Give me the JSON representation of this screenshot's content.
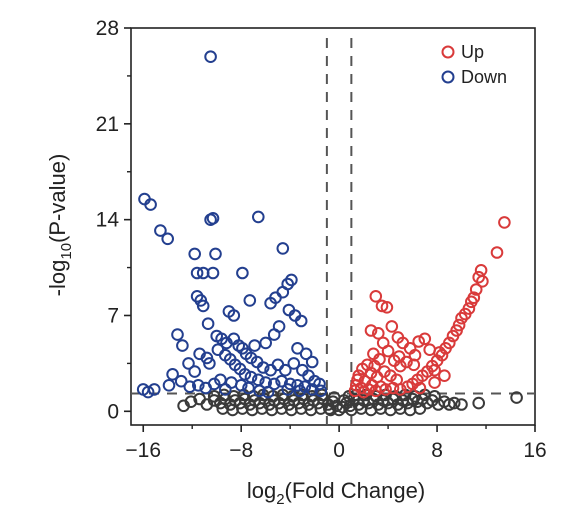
{
  "chart_data": {
    "type": "scatter",
    "title": "",
    "xlabel_main": "log",
    "xlabel_sub": "2",
    "xlabel_rest": "(Fold Change)",
    "ylabel_main": "-log",
    "ylabel_sub": "10",
    "ylabel_rest": "(P-value)",
    "xlim": [
      -17,
      16
    ],
    "ylim": [
      -1,
      28
    ],
    "xticks": [
      -16,
      -8,
      0,
      8,
      16
    ],
    "xtick_labels": [
      "−16",
      "−8",
      "0",
      "8",
      "16"
    ],
    "yticks": [
      0,
      7,
      14,
      21,
      28
    ],
    "ytick_labels": [
      "0",
      "7",
      "14",
      21,
      "28"
    ],
    "thresholds": {
      "fold_change_lines": [
        -1,
        1
      ],
      "pvalue_line": 1.3
    },
    "legend": {
      "placement": "top-right"
    },
    "series": [
      {
        "name": "Up",
        "color": "#d93a3a",
        "points": [
          [
            13.5,
            13.8
          ],
          [
            12.9,
            11.6
          ],
          [
            11.6,
            10.3
          ],
          [
            11.4,
            9.8
          ],
          [
            11.7,
            9.5
          ],
          [
            11.2,
            8.9
          ],
          [
            11.0,
            8.3
          ],
          [
            10.8,
            8.0
          ],
          [
            10.6,
            7.5
          ],
          [
            10.3,
            7.1
          ],
          [
            10.0,
            6.8
          ],
          [
            9.8,
            6.3
          ],
          [
            9.6,
            5.9
          ],
          [
            9.3,
            5.5
          ],
          [
            9.0,
            5.0
          ],
          [
            8.7,
            4.6
          ],
          [
            8.4,
            4.1
          ],
          [
            8.0,
            3.7
          ],
          [
            7.6,
            3.3
          ],
          [
            7.2,
            2.9
          ],
          [
            6.8,
            2.6
          ],
          [
            6.4,
            2.3
          ],
          [
            6.0,
            2.0
          ],
          [
            5.6,
            1.8
          ],
          [
            3.0,
            8.4
          ],
          [
            3.5,
            7.7
          ],
          [
            3.9,
            7.6
          ],
          [
            4.3,
            6.2
          ],
          [
            3.2,
            5.7
          ],
          [
            2.6,
            5.9
          ],
          [
            3.6,
            5.0
          ],
          [
            4.8,
            5.4
          ],
          [
            5.2,
            5.0
          ],
          [
            5.8,
            4.6
          ],
          [
            6.5,
            5.1
          ],
          [
            7.0,
            5.3
          ],
          [
            7.4,
            4.5
          ],
          [
            8.2,
            4.3
          ],
          [
            4.0,
            4.4
          ],
          [
            2.8,
            4.2
          ],
          [
            3.3,
            3.8
          ],
          [
            4.5,
            3.7
          ],
          [
            5.0,
            3.3
          ],
          [
            5.5,
            3.6
          ],
          [
            6.1,
            3.4
          ],
          [
            2.3,
            3.4
          ],
          [
            1.9,
            3.1
          ],
          [
            2.6,
            2.8
          ],
          [
            3.1,
            2.5
          ],
          [
            3.7,
            2.9
          ],
          [
            4.2,
            2.6
          ],
          [
            4.7,
            2.3
          ],
          [
            1.6,
            2.6
          ],
          [
            2.1,
            2.2
          ],
          [
            2.7,
            1.9
          ],
          [
            3.4,
            1.8
          ],
          [
            1.4,
            1.9
          ],
          [
            1.8,
            1.7
          ],
          [
            2.4,
            1.6
          ],
          [
            3.0,
            1.5
          ],
          [
            3.8,
            1.6
          ],
          [
            4.4,
            1.7
          ],
          [
            5.0,
            1.6
          ],
          [
            6.6,
            1.7
          ],
          [
            7.8,
            2.1
          ],
          [
            8.6,
            2.6
          ],
          [
            1.3,
            1.5
          ],
          [
            2.0,
            1.4
          ],
          [
            1.5,
            2.3
          ],
          [
            2.9,
            3.3
          ],
          [
            4.9,
            4.0
          ],
          [
            6.2,
            4.1
          ],
          [
            7.8,
            3.0
          ]
        ]
      },
      {
        "name": "Down",
        "color": "#233f8f",
        "points": [
          [
            -10.5,
            25.9
          ],
          [
            -15.9,
            15.5
          ],
          [
            -15.4,
            15.1
          ],
          [
            -14.6,
            13.2
          ],
          [
            -14.0,
            12.6
          ],
          [
            -10.5,
            14.0
          ],
          [
            -10.3,
            14.1
          ],
          [
            -6.6,
            14.2
          ],
          [
            -4.6,
            11.9
          ],
          [
            -11.8,
            11.5
          ],
          [
            -11.6,
            10.1
          ],
          [
            -11.1,
            10.1
          ],
          [
            -10.3,
            10.1
          ],
          [
            -10.1,
            11.5
          ],
          [
            -7.9,
            10.1
          ],
          [
            -4.2,
            9.3
          ],
          [
            -3.9,
            9.6
          ],
          [
            -4.6,
            8.7
          ],
          [
            -5.2,
            8.3
          ],
          [
            -5.6,
            7.9
          ],
          [
            -11.6,
            8.4
          ],
          [
            -11.3,
            8.1
          ],
          [
            -11.1,
            7.7
          ],
          [
            -9.0,
            7.3
          ],
          [
            -8.6,
            7.0
          ],
          [
            -7.3,
            8.1
          ],
          [
            -4.1,
            7.4
          ],
          [
            -3.6,
            7.0
          ],
          [
            -3.1,
            6.6
          ],
          [
            -10.7,
            6.4
          ],
          [
            -13.2,
            5.6
          ],
          [
            -12.8,
            4.8
          ],
          [
            -10.0,
            5.5
          ],
          [
            -9.6,
            5.3
          ],
          [
            -9.2,
            5.0
          ],
          [
            -8.6,
            5.3
          ],
          [
            -8.2,
            4.8
          ],
          [
            -7.9,
            4.6
          ],
          [
            -7.6,
            4.2
          ],
          [
            -7.2,
            3.9
          ],
          [
            -6.7,
            3.6
          ],
          [
            -6.2,
            3.2
          ],
          [
            -5.6,
            3.0
          ],
          [
            -5.0,
            3.4
          ],
          [
            -4.4,
            3.0
          ],
          [
            -3.7,
            3.5
          ],
          [
            -3.0,
            3.0
          ],
          [
            -2.5,
            2.6
          ],
          [
            -2.0,
            2.2
          ],
          [
            -1.6,
            2.0
          ],
          [
            -9.9,
            4.5
          ],
          [
            -9.3,
            4.1
          ],
          [
            -8.9,
            3.8
          ],
          [
            -8.5,
            3.4
          ],
          [
            -8.1,
            3.1
          ],
          [
            -7.7,
            2.7
          ],
          [
            -7.2,
            2.5
          ],
          [
            -6.6,
            2.3
          ],
          [
            -6.0,
            2.1
          ],
          [
            -5.3,
            2.0
          ],
          [
            -4.7,
            2.2
          ],
          [
            -4.0,
            2.0
          ],
          [
            -3.4,
            1.9
          ],
          [
            -2.8,
            1.8
          ],
          [
            -2.2,
            1.6
          ],
          [
            -1.5,
            1.5
          ],
          [
            -11.4,
            4.2
          ],
          [
            -10.8,
            3.9
          ],
          [
            -10.6,
            3.5
          ],
          [
            -12.3,
            3.5
          ],
          [
            -11.8,
            2.9
          ],
          [
            -13.6,
            2.7
          ],
          [
            -12.9,
            2.2
          ],
          [
            -12.2,
            1.8
          ],
          [
            -11.5,
            1.9
          ],
          [
            -10.9,
            1.7
          ],
          [
            -10.2,
            2.0
          ],
          [
            -9.7,
            2.3
          ],
          [
            -8.8,
            2.1
          ],
          [
            -8.0,
            1.9
          ],
          [
            -7.4,
            1.7
          ],
          [
            -16.0,
            1.6
          ],
          [
            -15.6,
            1.4
          ],
          [
            -15.1,
            1.6
          ],
          [
            -13.9,
            1.9
          ],
          [
            -9.3,
            1.6
          ],
          [
            -6.5,
            1.5
          ],
          [
            -5.8,
            1.4
          ],
          [
            -4.2,
            1.6
          ],
          [
            -3.2,
            1.5
          ],
          [
            -6.0,
            5.0
          ],
          [
            -5.3,
            5.6
          ],
          [
            -4.9,
            6.2
          ],
          [
            -6.9,
            4.8
          ],
          [
            -3.4,
            4.6
          ],
          [
            -2.7,
            4.2
          ],
          [
            -2.2,
            3.6
          ]
        ]
      },
      {
        "name": "",
        "color": "#3a3a3a",
        "points": [
          [
            14.5,
            1.0
          ],
          [
            11.4,
            0.6
          ],
          [
            10.0,
            0.5
          ],
          [
            9.4,
            0.6
          ],
          [
            9.0,
            0.5
          ],
          [
            8.6,
            0.7
          ],
          [
            8.1,
            0.5
          ],
          [
            7.6,
            0.8
          ],
          [
            7.2,
            0.6
          ],
          [
            6.8,
            0.9
          ],
          [
            6.4,
            0.7
          ],
          [
            6.0,
            0.9
          ],
          [
            5.6,
            0.6
          ],
          [
            5.2,
            0.8
          ],
          [
            4.8,
            0.5
          ],
          [
            4.4,
            0.9
          ],
          [
            4.0,
            0.6
          ],
          [
            3.6,
            0.8
          ],
          [
            3.2,
            0.5
          ],
          [
            2.8,
            0.9
          ],
          [
            2.4,
            0.6
          ],
          [
            2.0,
            0.8
          ],
          [
            1.6,
            0.5
          ],
          [
            1.2,
            0.9
          ],
          [
            0.9,
            0.4
          ],
          [
            0.6,
            0.6
          ],
          [
            0.3,
            0.3
          ],
          [
            -0.2,
            0.4
          ],
          [
            -0.5,
            0.7
          ],
          [
            -0.9,
            0.5
          ],
          [
            -1.3,
            0.9
          ],
          [
            -1.7,
            0.6
          ],
          [
            -2.1,
            0.8
          ],
          [
            -2.5,
            0.5
          ],
          [
            -2.9,
            0.9
          ],
          [
            -3.3,
            0.6
          ],
          [
            -3.7,
            0.8
          ],
          [
            -4.1,
            0.5
          ],
          [
            -4.5,
            0.9
          ],
          [
            -4.9,
            0.6
          ],
          [
            -5.3,
            0.8
          ],
          [
            -5.7,
            0.5
          ],
          [
            -6.1,
            0.9
          ],
          [
            -6.5,
            0.6
          ],
          [
            -6.9,
            0.8
          ],
          [
            -7.3,
            0.5
          ],
          [
            -7.7,
            0.9
          ],
          [
            -8.1,
            0.6
          ],
          [
            -8.5,
            0.8
          ],
          [
            -8.9,
            0.5
          ],
          [
            -9.3,
            0.9
          ],
          [
            -9.7,
            0.6
          ],
          [
            -10.2,
            0.8
          ],
          [
            -10.8,
            0.5
          ],
          [
            -11.4,
            0.9
          ],
          [
            -12.1,
            0.7
          ],
          [
            -12.7,
            0.4
          ],
          [
            1.4,
            1.2
          ],
          [
            2.2,
            1.2
          ],
          [
            3.0,
            1.1
          ],
          [
            3.8,
            1.2
          ],
          [
            4.6,
            1.1
          ],
          [
            5.4,
            1.2
          ],
          [
            6.2,
            1.1
          ],
          [
            7.0,
            1.2
          ],
          [
            7.8,
            1.1
          ],
          [
            -1.4,
            1.2
          ],
          [
            -2.2,
            1.1
          ],
          [
            -3.0,
            1.2
          ],
          [
            -3.8,
            1.1
          ],
          [
            -4.6,
            1.2
          ],
          [
            -5.4,
            1.1
          ],
          [
            -6.2,
            1.2
          ],
          [
            -7.0,
            1.1
          ],
          [
            -7.8,
            1.2
          ],
          [
            -8.6,
            1.1
          ],
          [
            -9.4,
            1.2
          ],
          [
            -10.2,
            1.1
          ],
          [
            1.0,
            0.1
          ],
          [
            1.8,
            0.2
          ],
          [
            2.6,
            0.1
          ],
          [
            3.4,
            0.2
          ],
          [
            4.2,
            0.1
          ],
          [
            5.0,
            0.2
          ],
          [
            5.8,
            0.1
          ],
          [
            6.6,
            0.2
          ],
          [
            -0.7,
            0.1
          ],
          [
            -1.5,
            0.2
          ],
          [
            -2.3,
            0.1
          ],
          [
            -3.1,
            0.2
          ],
          [
            -3.9,
            0.1
          ],
          [
            -4.7,
            0.2
          ],
          [
            -5.5,
            0.1
          ],
          [
            -6.3,
            0.2
          ],
          [
            -7.1,
            0.1
          ],
          [
            -7.9,
            0.2
          ],
          [
            -8.7,
            0.1
          ],
          [
            -9.5,
            0.2
          ],
          [
            0.0,
            0.1
          ],
          [
            0.4,
            0.8
          ],
          [
            -0.4,
            1.0
          ],
          [
            0.8,
            1.1
          ],
          [
            -0.8,
            0.2
          ]
        ]
      }
    ]
  }
}
